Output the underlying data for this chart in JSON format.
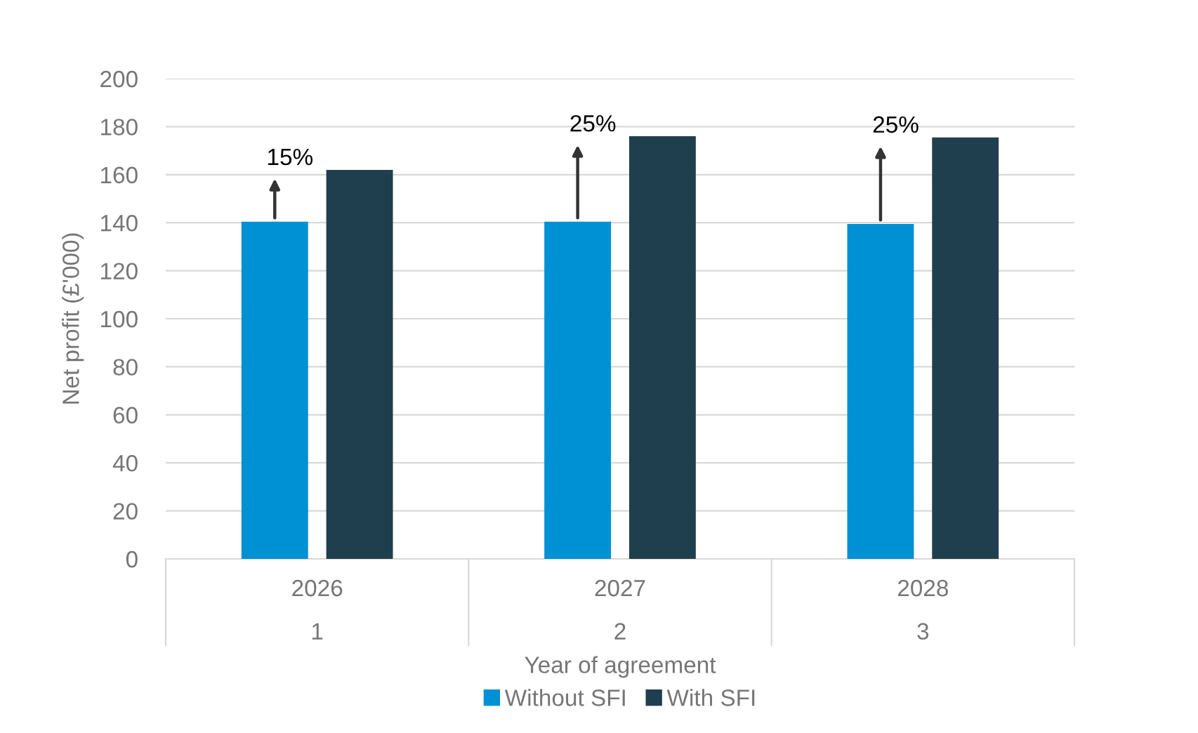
{
  "chart_data": {
    "type": "bar",
    "xlabel": "Year of agreement",
    "ylabel": "Net profit (£'000)",
    "categories": [
      "2026\n1",
      "2027\n2",
      "2028\n3"
    ],
    "series": [
      {
        "name": "Without SFI",
        "color": "#0090d4",
        "values": [
          140.4,
          140.4,
          139.5
        ]
      },
      {
        "name": "With SFI",
        "color": "#203f4e",
        "values": [
          162,
          176,
          175.5
        ]
      }
    ],
    "annotations": [
      "15%",
      "25%",
      "25%"
    ],
    "ylim": [
      0,
      200
    ],
    "yticks": [
      0,
      20,
      40,
      60,
      80,
      100,
      120,
      140,
      160,
      180,
      200
    ],
    "grid": "y",
    "legend": "bottom"
  }
}
